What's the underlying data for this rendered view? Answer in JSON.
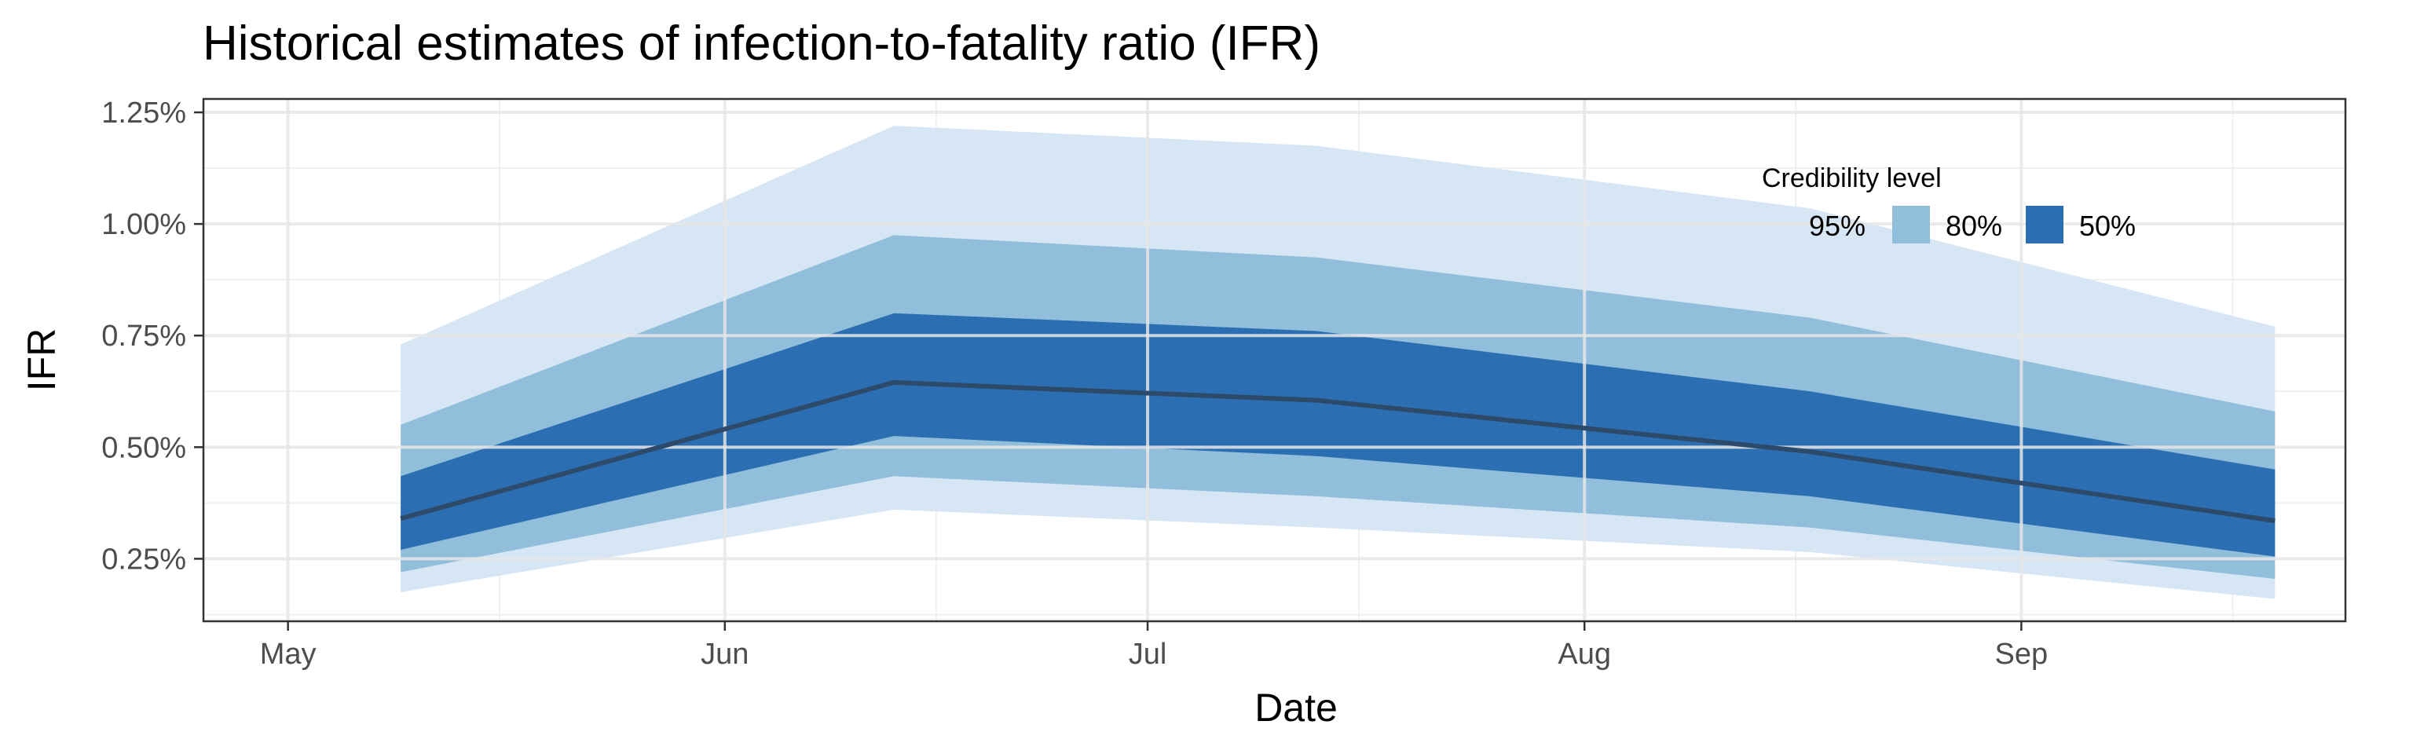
{
  "chart_data": {
    "type": "area",
    "title": "Historical estimates of infection-to-fatality ratio (IFR)",
    "xlabel": "Date",
    "ylabel": "IFR",
    "x_ticks": [
      "May",
      "Jun",
      "Jul",
      "Aug",
      "Sep"
    ],
    "y_ticks": [
      "0.25%",
      "0.50%",
      "0.75%",
      "1.00%",
      "1.25%"
    ],
    "ylim": [
      0.11,
      1.28
    ],
    "xlim": [
      "2020-04-25",
      "2020-09-24"
    ],
    "grid": true,
    "legend_position": "top-right",
    "legend": {
      "title": "Credibility level",
      "items": [
        {
          "label": "95%",
          "color": "#d6e6f4"
        },
        {
          "label": "80%",
          "color": "#91bedb"
        },
        {
          "label": "50%",
          "color": "#2b6fb2"
        }
      ]
    },
    "x": [
      "2020-05-09",
      "2020-06-13",
      "2020-07-13",
      "2020-08-17",
      "2020-09-19"
    ],
    "median": [
      0.34,
      0.645,
      0.605,
      0.49,
      0.335
    ],
    "bands": [
      {
        "level": "95%",
        "lower": [
          0.175,
          0.36,
          0.32,
          0.265,
          0.16
        ],
        "upper": [
          0.73,
          1.22,
          1.175,
          1.035,
          0.77
        ],
        "color": "#d6e6f4"
      },
      {
        "level": "80%",
        "lower": [
          0.22,
          0.435,
          0.39,
          0.32,
          0.205
        ],
        "upper": [
          0.55,
          0.975,
          0.925,
          0.79,
          0.58
        ],
        "color": "#91bedb"
      },
      {
        "level": "50%",
        "lower": [
          0.27,
          0.525,
          0.48,
          0.39,
          0.255
        ],
        "upper": [
          0.435,
          0.8,
          0.76,
          0.625,
          0.45
        ],
        "color": "#2b6fb2"
      }
    ],
    "line_color": "#2e4a6b"
  }
}
